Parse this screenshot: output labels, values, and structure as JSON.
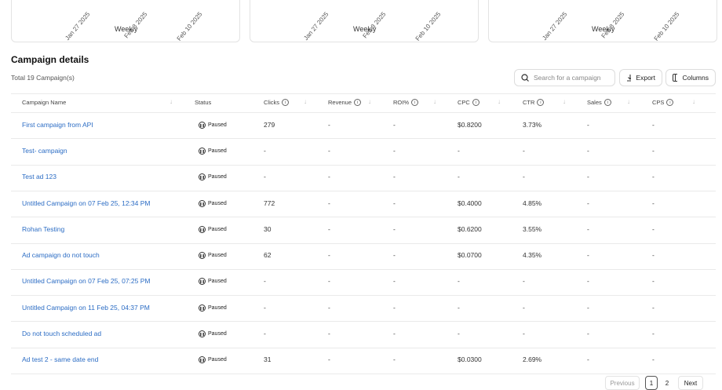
{
  "cards": [
    {
      "dates": [
        "Jan 27 2025",
        "Feb 3 2025",
        "Feb 10 2025"
      ],
      "period": "Weekly"
    },
    {
      "dates": [
        "Jan 27 2025",
        "Feb 3 2025",
        "Feb 10 2025"
      ],
      "period": "Weekly"
    },
    {
      "dates": [
        "Jan 27 2025",
        "Feb 3 2025",
        "Feb 10 2025"
      ],
      "period": "Weekly"
    }
  ],
  "section": {
    "title": "Campaign details",
    "total": "Total 19 Campaign(s)"
  },
  "search": {
    "placeholder": "Search for a campaign"
  },
  "buttons": {
    "export": "Export",
    "columns": "Columns"
  },
  "table": {
    "columns": [
      "Campaign Name",
      "Status",
      "Clicks",
      "Revenue",
      "ROI%",
      "CPC",
      "CTR",
      "Sales",
      "CPS"
    ],
    "rows": [
      [
        "First campaign from API",
        "Paused",
        "279",
        "-",
        "-",
        "$0.8200",
        "3.73%",
        "-",
        "-"
      ],
      [
        "Test- campaign",
        "Paused",
        "-",
        "-",
        "-",
        "-",
        "-",
        "-",
        "-"
      ],
      [
        "Test ad 123",
        "Paused",
        "-",
        "-",
        "-",
        "-",
        "-",
        "-",
        "-"
      ],
      [
        "Untitled Campaign on 07 Feb 25, 12:34 PM",
        "Paused",
        "772",
        "-",
        "-",
        "$0.4000",
        "4.85%",
        "-",
        "-"
      ],
      [
        "Rohan Testing",
        "Paused",
        "30",
        "-",
        "-",
        "$0.6200",
        "3.55%",
        "-",
        "-"
      ],
      [
        "Ad campaign do not touch",
        "Paused",
        "62",
        "-",
        "-",
        "$0.0700",
        "4.35%",
        "-",
        "-"
      ],
      [
        "Untitled Campaign on 07 Feb 25, 07:25 PM",
        "Paused",
        "-",
        "-",
        "-",
        "-",
        "-",
        "-",
        "-"
      ],
      [
        "Untitled Campaign on 11 Feb 25, 04:37 PM",
        "Paused",
        "-",
        "-",
        "-",
        "-",
        "-",
        "-",
        "-"
      ],
      [
        "Do not touch scheduled ad",
        "Paused",
        "-",
        "-",
        "-",
        "-",
        "-",
        "-",
        "-"
      ],
      [
        "Ad test 2 - same date end",
        "Paused",
        "31",
        "-",
        "-",
        "$0.0300",
        "2.69%",
        "-",
        "-"
      ]
    ]
  },
  "pagination": {
    "previous": "Previous",
    "pages": [
      "1",
      "2"
    ],
    "next": "Next"
  }
}
